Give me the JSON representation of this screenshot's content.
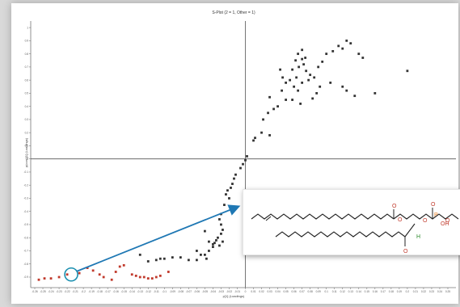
{
  "chart_data": {
    "type": "scatter",
    "title": "S-Plot (2 = 1, Other = 1)",
    "xlabel": "p[1] (Loadings)",
    "ylabel": "p(corr)[1] (Loadings)",
    "xlim": [
      -0.265,
      0.26
    ],
    "ylim": [
      -0.98,
      1.05
    ],
    "x_ticks": [
      -0.26,
      -0.25,
      -0.24,
      -0.23,
      -0.22,
      -0.21,
      -0.2,
      -0.19,
      -0.18,
      -0.17,
      -0.16,
      -0.15,
      -0.14,
      -0.13,
      -0.12,
      -0.11,
      -0.1,
      -0.09,
      -0.08,
      -0.07,
      -0.06,
      -0.05,
      -0.04,
      -0.03,
      -0.02,
      -0.01,
      0,
      0.01,
      0.02,
      0.03,
      0.04,
      0.05,
      0.06,
      0.07,
      0.08,
      0.09,
      0.1,
      0.11,
      0.12,
      0.13,
      0.14,
      0.15,
      0.16,
      0.17,
      0.18,
      0.19,
      0.2,
      0.21,
      0.22,
      0.23,
      0.24,
      0.25
    ],
    "y_ticks": [
      -0.9,
      -0.8,
      -0.7,
      -0.6,
      -0.5,
      -0.4,
      -0.3,
      -0.2,
      -0.1,
      0,
      0.1,
      0.2,
      0.3,
      0.4,
      0.5,
      0.6,
      0.7,
      0.8,
      0.9,
      1
    ],
    "grid": false,
    "crosshair": [
      0,
      0
    ],
    "series": [
      {
        "color": "#333333",
        "points": [
          [
            0.002,
            0.02
          ],
          [
            0.0,
            -0.01
          ],
          [
            -0.003,
            -0.04
          ],
          [
            -0.006,
            -0.07
          ],
          [
            -0.012,
            -0.12
          ],
          [
            -0.014,
            -0.15
          ],
          [
            -0.016,
            -0.19
          ],
          [
            -0.018,
            -0.22
          ],
          [
            -0.022,
            -0.24
          ],
          [
            -0.024,
            -0.27
          ],
          [
            -0.02,
            -0.3
          ],
          [
            -0.026,
            -0.35
          ],
          [
            -0.03,
            -0.42
          ],
          [
            -0.032,
            -0.46
          ],
          [
            -0.03,
            -0.5
          ],
          [
            -0.028,
            -0.54
          ],
          [
            -0.03,
            -0.57
          ],
          [
            -0.034,
            -0.6
          ],
          [
            -0.036,
            -0.62
          ],
          [
            -0.038,
            -0.64
          ],
          [
            -0.032,
            -0.66
          ],
          [
            -0.028,
            -0.63
          ],
          [
            -0.04,
            -0.67
          ],
          [
            -0.045,
            -0.7
          ],
          [
            -0.05,
            -0.73
          ],
          [
            -0.055,
            -0.73
          ],
          [
            -0.048,
            -0.76
          ],
          [
            -0.06,
            -0.77
          ],
          [
            -0.07,
            -0.77
          ],
          [
            -0.08,
            -0.75
          ],
          [
            -0.09,
            -0.75
          ],
          [
            -0.1,
            -0.76
          ],
          [
            -0.105,
            -0.76
          ],
          [
            -0.11,
            -0.77
          ],
          [
            -0.12,
            -0.78
          ],
          [
            -0.13,
            -0.73
          ],
          [
            -0.045,
            -0.63
          ],
          [
            -0.05,
            -0.55
          ],
          [
            -0.04,
            -0.65
          ],
          [
            -0.06,
            -0.7
          ],
          [
            0.01,
            0.14
          ],
          [
            0.012,
            0.16
          ],
          [
            0.02,
            0.2
          ],
          [
            0.03,
            0.18
          ],
          [
            0.022,
            0.3
          ],
          [
            0.028,
            0.35
          ],
          [
            0.035,
            0.38
          ],
          [
            0.04,
            0.4
          ],
          [
            0.05,
            0.45
          ],
          [
            0.06,
            0.55
          ],
          [
            0.03,
            0.47
          ],
          [
            0.045,
            0.52
          ],
          [
            0.055,
            0.6
          ],
          [
            0.058,
            0.68
          ],
          [
            0.062,
            0.75
          ],
          [
            0.065,
            0.8
          ],
          [
            0.07,
            0.76
          ],
          [
            0.072,
            0.72
          ],
          [
            0.075,
            0.67
          ],
          [
            0.08,
            0.64
          ],
          [
            0.085,
            0.62
          ],
          [
            0.09,
            0.7
          ],
          [
            0.095,
            0.74
          ],
          [
            0.1,
            0.8
          ],
          [
            0.108,
            0.82
          ],
          [
            0.115,
            0.86
          ],
          [
            0.12,
            0.84
          ],
          [
            0.125,
            0.9
          ],
          [
            0.13,
            0.88
          ],
          [
            0.14,
            0.8
          ],
          [
            0.145,
            0.77
          ],
          [
            0.105,
            0.58
          ],
          [
            0.12,
            0.55
          ],
          [
            0.125,
            0.52
          ],
          [
            0.135,
            0.48
          ],
          [
            0.16,
            0.5
          ],
          [
            0.065,
            0.52
          ],
          [
            0.07,
            0.58
          ],
          [
            0.078,
            0.6
          ],
          [
            0.068,
            0.42
          ],
          [
            0.058,
            0.45
          ],
          [
            0.05,
            0.58
          ],
          [
            0.046,
            0.62
          ],
          [
            0.043,
            0.68
          ],
          [
            0.066,
            0.7
          ],
          [
            0.074,
            0.77
          ],
          [
            0.07,
            0.83
          ],
          [
            0.092,
            0.55
          ],
          [
            0.088,
            0.5
          ],
          [
            0.083,
            0.46
          ],
          [
            0.2,
            0.67
          ],
          [
            0.063,
            0.62
          ]
        ]
      },
      {
        "color": "#c0392b",
        "points": [
          [
            -0.255,
            -0.92
          ],
          [
            -0.248,
            -0.91
          ],
          [
            -0.24,
            -0.91
          ],
          [
            -0.23,
            -0.9
          ],
          [
            -0.22,
            -0.88
          ],
          [
            -0.205,
            -0.87
          ],
          [
            -0.195,
            -0.83
          ],
          [
            -0.188,
            -0.85
          ],
          [
            -0.18,
            -0.88
          ],
          [
            -0.175,
            -0.9
          ],
          [
            -0.165,
            -0.92
          ],
          [
            -0.16,
            -0.86
          ],
          [
            -0.155,
            -0.82
          ],
          [
            -0.15,
            -0.81
          ],
          [
            -0.14,
            -0.88
          ],
          [
            -0.135,
            -0.89
          ],
          [
            -0.13,
            -0.9
          ],
          [
            -0.125,
            -0.9
          ],
          [
            -0.12,
            -0.91
          ],
          [
            -0.115,
            -0.91
          ],
          [
            -0.11,
            -0.9
          ],
          [
            -0.105,
            -0.89
          ],
          [
            -0.095,
            -0.86
          ]
        ]
      }
    ],
    "annotation": {
      "target": [
        -0.215,
        -0.88
      ],
      "arrow_to": "inset",
      "inset_content": "chemical structures (glycerophospholipid with polyunsaturated and monounsaturated acyl chains)",
      "inset_labels": [
        "O",
        "O",
        "O",
        "O",
        "P",
        "OH",
        "O",
        "H",
        "O"
      ],
      "marker_color": "#1a8fb0",
      "arrow_color": "#1f78b4"
    }
  }
}
